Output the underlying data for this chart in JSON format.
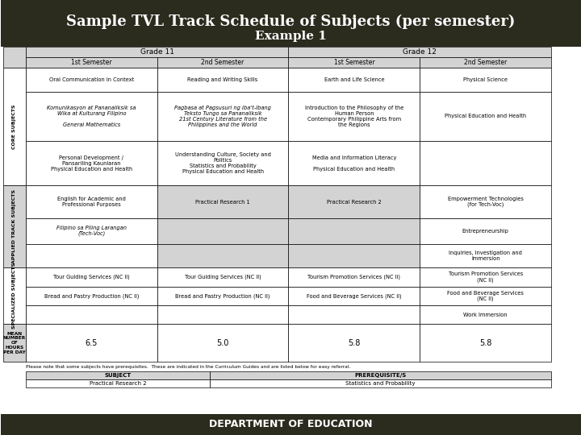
{
  "title": "Sample TVL Track Schedule of Subjects (per semester)",
  "subtitle": "Example 1",
  "footer": "DEPARTMENT OF EDUCATION",
  "title_bg": "#2b2b1e",
  "footer_bg": "#2b2b1e",
  "title_color": "#ffffff",
  "footer_color": "#ffffff",
  "table_bg": "#ffffff",
  "header_bg": "#d3d3d3",
  "grade11_color": "#d3d3d3",
  "grade12_color": "#d3d3d3",
  "applied_bg": "#d3d3d3",
  "specialized_bg": "#ffffff",
  "row_label_color": "#2b2b1e",
  "grade_labels": [
    "Grade 11",
    "Grade 12"
  ],
  "sem_labels": [
    "1st Semester",
    "2nd Semester",
    "1st Semester",
    "2nd Semester"
  ],
  "core_label": "CORE SUBJECTS",
  "applied_label": "APPLIED TRACK SUBJECTS",
  "specialized_label": "SPECIALIZED SUBJECTS",
  "mean_label": "MEAN\nNUMBER\nOF\nHOURS\nPER DAY",
  "core_rows": [
    [
      "Oral Communication in Context",
      "Reading and Writing Skills",
      "Earth and Life Science",
      "Physical Science"
    ],
    [
      "Komunikasyon at Pananaliksik sa\nWika at Kulturang Filipino\n\nGeneral Mathematics",
      "Pagbasa at Pagsusuri ng Iba't-Ibang\nTeksto Tungo sa Pananaliksik\n21st Century Literature from the\nPhilippines and the World",
      "Introduction to the Philosophy of the\nHuman Person\nContemporary Philippine Arts from\nthe Regions",
      "Physical Education and Health"
    ],
    [
      "Personal Development /\nPansariling Kaunlaran\nPhysical Education and Health",
      "Understanding Culture, Society and\nPolitics\nStatistics and Probability\nPhysical Education and Health",
      "Media and Information Literacy\n\nPhysical Education and Health",
      ""
    ]
  ],
  "applied_rows": [
    [
      "English for Academic and\nProfessional Purposes",
      "Practical Research 1",
      "Practical Research 2",
      "Empowerment Technologies\n(for Tech-Voc)"
    ],
    [
      "Filipino sa Piling Larangan\n(Tech-Voc)",
      "",
      "",
      "Entrepreneurship"
    ],
    [
      "",
      "",
      "",
      "Inquiries, Investigation and\nImmersion"
    ]
  ],
  "specialized_rows": [
    [
      "Tour Guiding Services (NC II)",
      "Tour Guiding Services (NC II)",
      "Tourism Promotion Services (NC II)",
      "Tourism Promotion Services\n(NC II)"
    ],
    [
      "Bread and Pastry Production (NC II)",
      "Bread and Pastry Production (NC II)",
      "Food and Beverage Services (NC II)",
      "Food and Beverage Services\n(NC II)"
    ],
    [
      "",
      "",
      "",
      "Work Immersion"
    ]
  ],
  "mean_values": [
    "6.5",
    "5.0",
    "5.8",
    "5.8"
  ],
  "note_text": "Please note that some subjects have prerequisites.  These are indicated in the Curriculum Guides and are listed below for easy referral.",
  "prereq_headers": [
    "SUBJECT",
    "PREREQUISITE/S"
  ],
  "prereq_data": [
    [
      "Practical Research 2",
      "Statistics and Probability"
    ]
  ]
}
